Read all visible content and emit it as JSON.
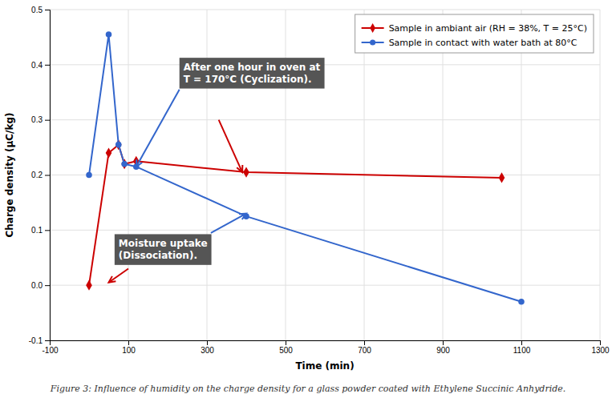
{
  "chart_data": {
    "type": "line",
    "xlabel": "Time (min)",
    "ylabel": "Charge density (μC/kg)",
    "xlim": [
      -100,
      1300
    ],
    "ylim": [
      -0.1,
      0.5
    ],
    "xticks": [
      -100,
      100,
      300,
      500,
      700,
      900,
      1100,
      1300
    ],
    "yticks": [
      -0.1,
      {
        "value": 0.0,
        "label": "0.0"
      },
      0.1,
      0.2,
      0.3,
      0.4,
      0.5
    ],
    "grid": true,
    "legend": "upper right",
    "series": [
      {
        "name": "Sample in ambiant air (RH = 38%, T = 25°C)",
        "color": "#CC0000",
        "marker": "diamond",
        "x": [
          0,
          50,
          75,
          90,
          120,
          400,
          1050
        ],
        "values": [
          0.0,
          0.24,
          0.255,
          0.22,
          0.225,
          0.205,
          0.195
        ]
      },
      {
        "name": "Sample in contact with water bath at 80°C",
        "color": "#3366CC",
        "marker": "circle",
        "x": [
          0,
          50,
          75,
          90,
          120,
          400,
          1100
        ],
        "values": [
          0.2,
          0.455,
          0.255,
          0.22,
          0.215,
          0.125,
          -0.03
        ]
      }
    ],
    "annotations": [
      {
        "text": "After one hour in oven at\nT = 170°C (Cyclization).",
        "x": 230,
        "y": 0.385,
        "color": "#555555",
        "arrows": [
          {
            "from": [
              330,
              0.3
            ],
            "to": [
              390,
              0.205
            ],
            "color": "#CC0000"
          },
          {
            "from": [
              230,
              0.355
            ],
            "to": [
              120,
              0.215
            ],
            "color": "#3366CC"
          }
        ]
      },
      {
        "text": "Moisture uptake\n(Dissociation).",
        "x": 65,
        "y": 0.065,
        "color": "#555555",
        "arrows": [
          {
            "from": [
              100,
              0.03
            ],
            "to": [
              50,
              0.005
            ],
            "color": "#CC0000"
          },
          {
            "from": [
              310,
              0.095
            ],
            "to": [
              400,
              0.13
            ],
            "color": "#3366CC"
          }
        ]
      }
    ],
    "caption": "Figure 3: Influence of humidity on the charge density for a glass powder coated with Ethylene Succinic Anhydride."
  }
}
